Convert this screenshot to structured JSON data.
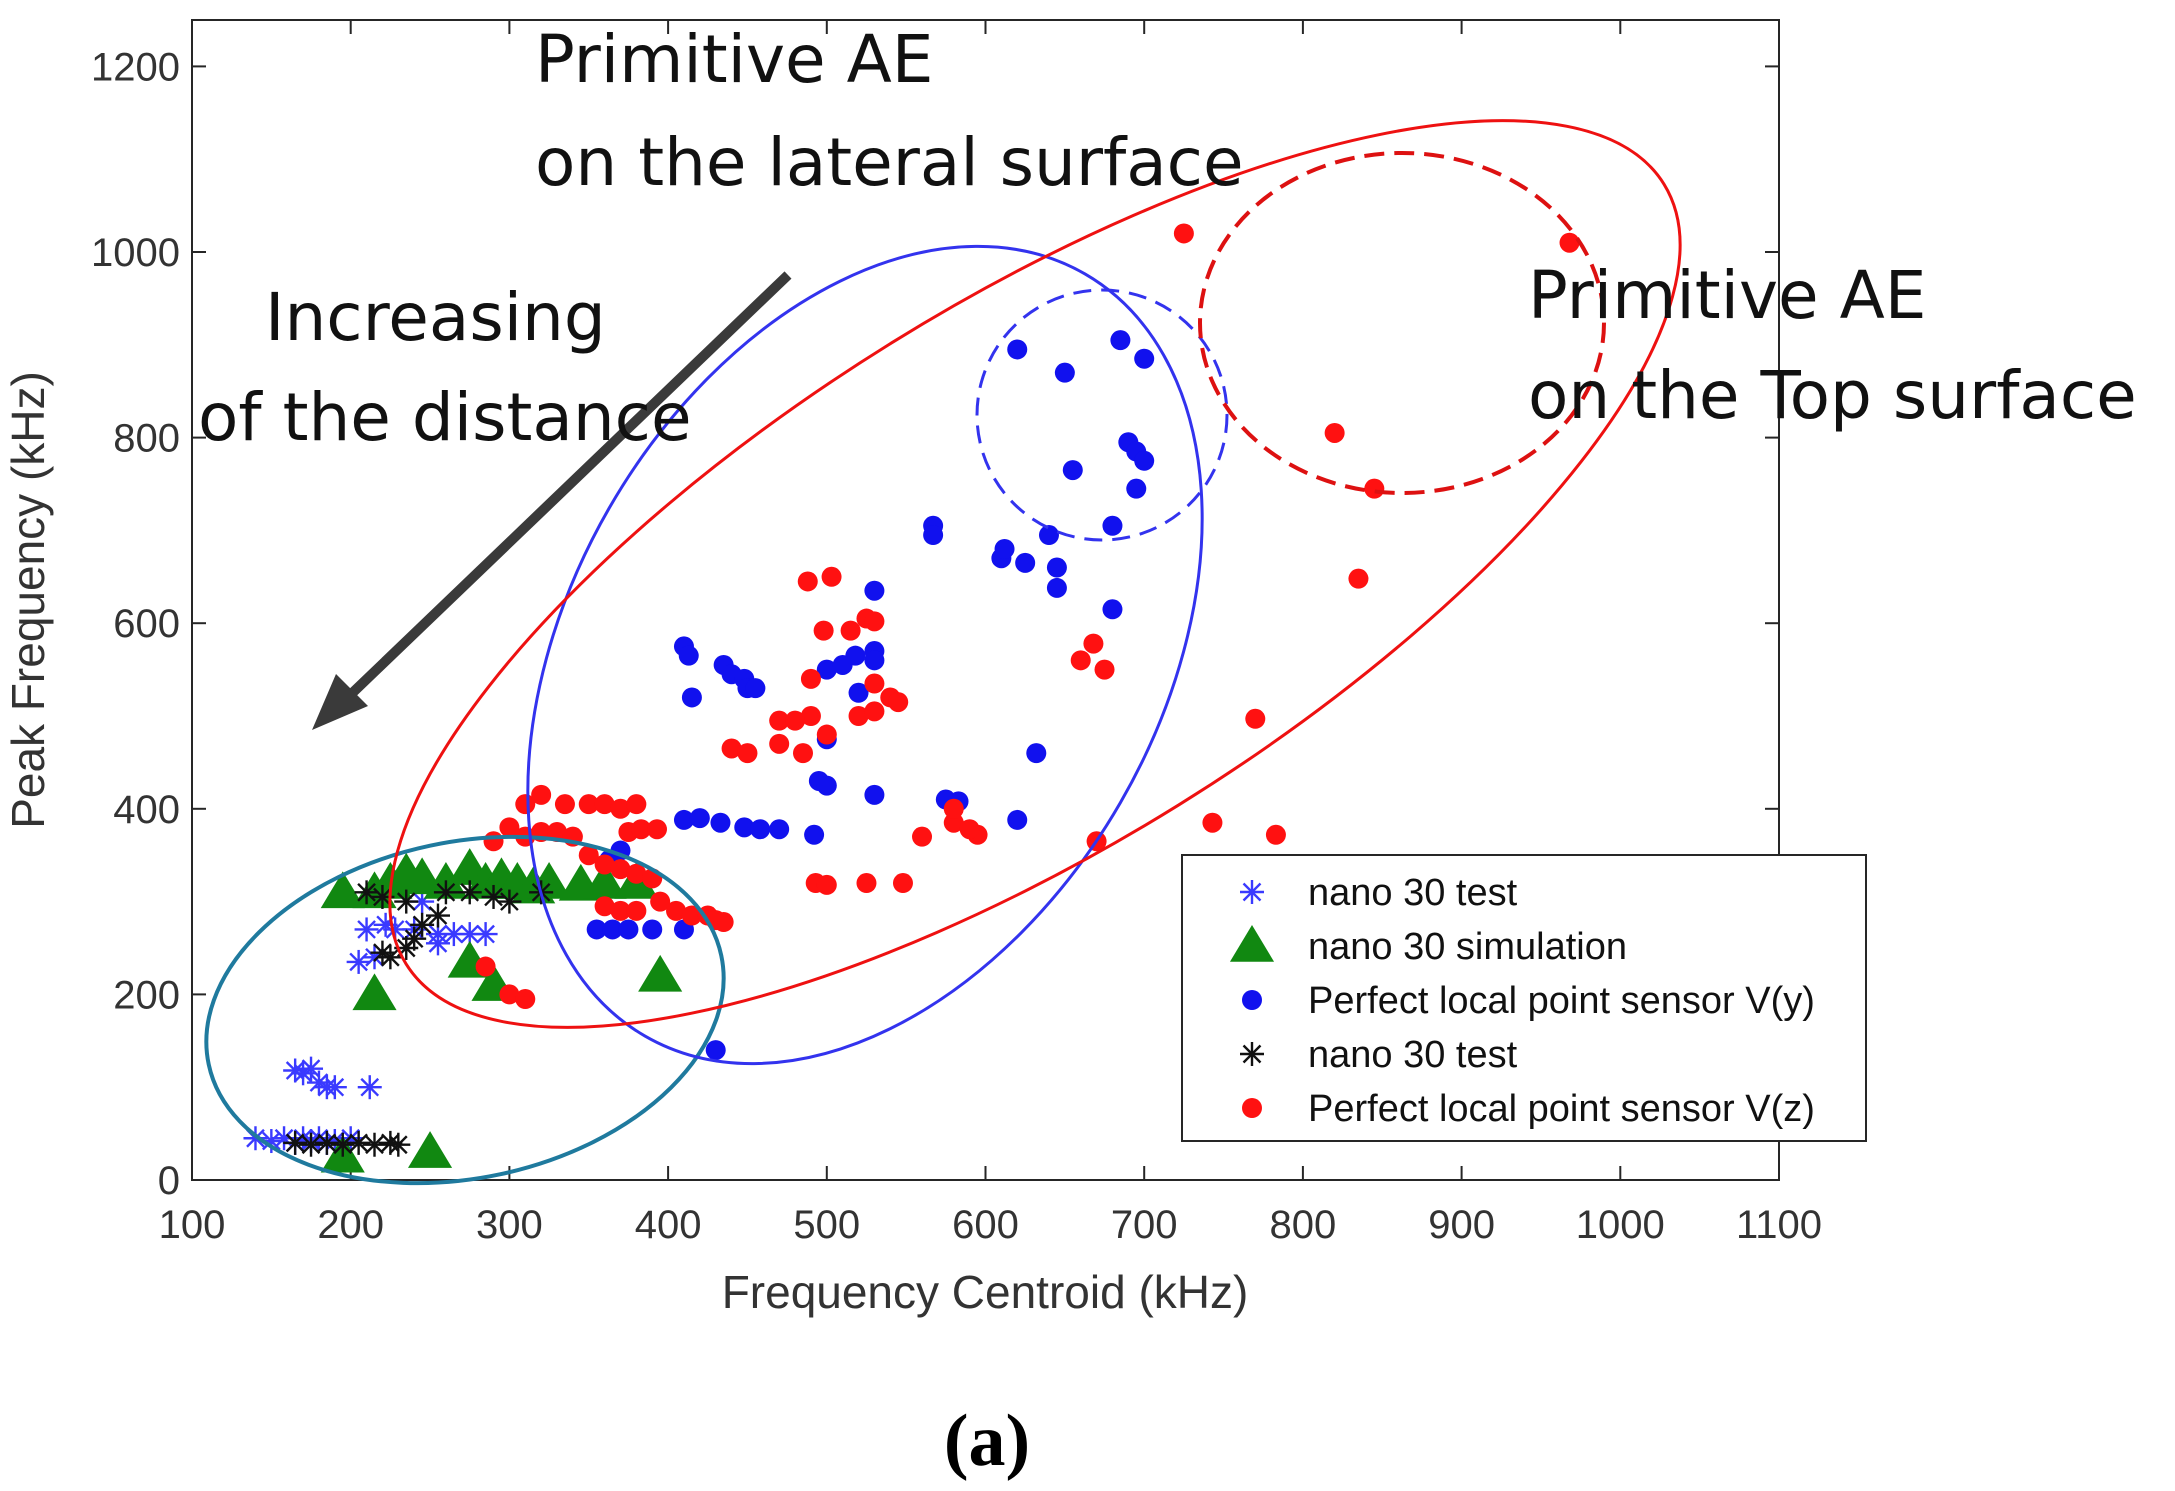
{
  "chart_data": {
    "type": "scatter",
    "xlabel": "Frequency Centroid (kHz)",
    "ylabel": "Peak Frequency (kHz)",
    "xlim": [
      100,
      1100
    ],
    "ylim": [
      0,
      1250
    ],
    "xticks": [
      100,
      200,
      300,
      400,
      500,
      600,
      700,
      800,
      900,
      1000,
      1100
    ],
    "yticks": [
      0,
      200,
      400,
      600,
      800,
      1000,
      1200
    ],
    "grid": false,
    "legend_position": "bottom-right",
    "caption": "(a)",
    "annotations": [
      {
        "name": "lateral",
        "lines": [
          "Primitive AE",
          "on the lateral surface"
        ]
      },
      {
        "name": "top",
        "lines": [
          "Primitive AE",
          "on the Top surface"
        ]
      },
      {
        "name": "distance",
        "lines": [
          "Increasing",
          "of the distance"
        ]
      }
    ],
    "series": [
      {
        "name": "nano 30 test",
        "marker": "asterisk",
        "color": "#3a3aff",
        "points": [
          [
            140,
            45
          ],
          [
            150,
            42
          ],
          [
            158,
            45
          ],
          [
            165,
            40
          ],
          [
            170,
            45
          ],
          [
            175,
            42
          ],
          [
            180,
            45
          ],
          [
            185,
            40
          ],
          [
            190,
            42
          ],
          [
            200,
            45
          ],
          [
            165,
            118
          ],
          [
            170,
            115
          ],
          [
            175,
            120
          ],
          [
            180,
            105
          ],
          [
            185,
            100
          ],
          [
            190,
            100
          ],
          [
            212,
            100
          ],
          [
            205,
            235
          ],
          [
            215,
            240
          ],
          [
            210,
            270
          ],
          [
            222,
            275
          ],
          [
            228,
            270
          ],
          [
            240,
            270
          ],
          [
            255,
            265
          ],
          [
            265,
            265
          ],
          [
            275,
            265
          ],
          [
            285,
            265
          ],
          [
            255,
            255
          ],
          [
            245,
            300
          ]
        ]
      },
      {
        "name": "nano 30 simulation",
        "marker": "triangle",
        "color": "#118811",
        "points": [
          [
            195,
            310
          ],
          [
            215,
            310
          ],
          [
            225,
            320
          ],
          [
            235,
            330
          ],
          [
            245,
            325
          ],
          [
            260,
            320
          ],
          [
            275,
            335
          ],
          [
            285,
            320
          ],
          [
            295,
            325
          ],
          [
            305,
            320
          ],
          [
            315,
            315
          ],
          [
            325,
            320
          ],
          [
            345,
            318
          ],
          [
            360,
            320
          ],
          [
            380,
            320
          ],
          [
            215,
            200
          ],
          [
            275,
            235
          ],
          [
            290,
            210
          ],
          [
            395,
            220
          ],
          [
            250,
            30
          ],
          [
            195,
            25
          ]
        ]
      },
      {
        "name": "Perfect local point sensor V(y)",
        "marker": "circle",
        "color": "#1111ee",
        "points": [
          [
            620,
            895
          ],
          [
            685,
            905
          ],
          [
            700,
            885
          ],
          [
            650,
            870
          ],
          [
            690,
            795
          ],
          [
            695,
            785
          ],
          [
            700,
            775
          ],
          [
            655,
            765
          ],
          [
            695,
            745
          ],
          [
            680,
            705
          ],
          [
            567,
            705
          ],
          [
            567,
            695
          ],
          [
            610,
            670
          ],
          [
            612,
            680
          ],
          [
            625,
            665
          ],
          [
            640,
            695
          ],
          [
            645,
            660
          ],
          [
            645,
            638
          ],
          [
            680,
            615
          ],
          [
            530,
            635
          ],
          [
            410,
            575
          ],
          [
            413,
            565
          ],
          [
            435,
            555
          ],
          [
            440,
            545
          ],
          [
            448,
            540
          ],
          [
            450,
            530
          ],
          [
            455,
            530
          ],
          [
            415,
            520
          ],
          [
            500,
            550
          ],
          [
            510,
            555
          ],
          [
            518,
            565
          ],
          [
            530,
            570
          ],
          [
            530,
            560
          ],
          [
            520,
            525
          ],
          [
            500,
            475
          ],
          [
            495,
            430
          ],
          [
            500,
            425
          ],
          [
            530,
            415
          ],
          [
            492,
            372
          ],
          [
            448,
            380
          ],
          [
            458,
            378
          ],
          [
            470,
            378
          ],
          [
            410,
            388
          ],
          [
            420,
            390
          ],
          [
            433,
            385
          ],
          [
            575,
            410
          ],
          [
            583,
            408
          ],
          [
            620,
            388
          ],
          [
            632,
            460
          ],
          [
            355,
            270
          ],
          [
            365,
            270
          ],
          [
            375,
            270
          ],
          [
            390,
            270
          ],
          [
            410,
            270
          ],
          [
            430,
            140
          ],
          [
            370,
            355
          ],
          [
            363,
            345
          ]
        ]
      },
      {
        "name": "nano 30 test",
        "marker": "asterisk",
        "color": "#111111",
        "points": [
          [
            165,
            40
          ],
          [
            175,
            38
          ],
          [
            185,
            40
          ],
          [
            195,
            38
          ],
          [
            205,
            40
          ],
          [
            215,
            38
          ],
          [
            225,
            40
          ],
          [
            230,
            38
          ],
          [
            210,
            310
          ],
          [
            220,
            305
          ],
          [
            235,
            300
          ],
          [
            260,
            310
          ],
          [
            275,
            310
          ],
          [
            290,
            305
          ],
          [
            300,
            300
          ],
          [
            320,
            310
          ],
          [
            220,
            245
          ],
          [
            235,
            250
          ],
          [
            245,
            275
          ],
          [
            255,
            285
          ],
          [
            240,
            260
          ],
          [
            225,
            240
          ]
        ]
      },
      {
        "name": "Perfect local point sensor V(z)",
        "marker": "circle",
        "color": "#ff1111",
        "points": [
          [
            725,
            1020
          ],
          [
            968,
            1010
          ],
          [
            820,
            805
          ],
          [
            845,
            745
          ],
          [
            835,
            648
          ],
          [
            488,
            645
          ],
          [
            503,
            650
          ],
          [
            498,
            592
          ],
          [
            515,
            592
          ],
          [
            525,
            605
          ],
          [
            530,
            602
          ],
          [
            490,
            540
          ],
          [
            520,
            500
          ],
          [
            530,
            505
          ],
          [
            540,
            520
          ],
          [
            545,
            515
          ],
          [
            530,
            535
          ],
          [
            490,
            500
          ],
          [
            500,
            480
          ],
          [
            485,
            460
          ],
          [
            470,
            470
          ],
          [
            440,
            465
          ],
          [
            450,
            460
          ],
          [
            470,
            495
          ],
          [
            480,
            495
          ],
          [
            660,
            560
          ],
          [
            668,
            578
          ],
          [
            675,
            550
          ],
          [
            770,
            497
          ],
          [
            560,
            370
          ],
          [
            580,
            385
          ],
          [
            580,
            400
          ],
          [
            595,
            372
          ],
          [
            590,
            378
          ],
          [
            670,
            365
          ],
          [
            743,
            385
          ],
          [
            783,
            372
          ],
          [
            493,
            320
          ],
          [
            500,
            318
          ],
          [
            525,
            320
          ],
          [
            548,
            320
          ],
          [
            310,
            405
          ],
          [
            320,
            415
          ],
          [
            335,
            405
          ],
          [
            350,
            405
          ],
          [
            360,
            405
          ],
          [
            370,
            400
          ],
          [
            380,
            405
          ],
          [
            375,
            375
          ],
          [
            383,
            378
          ],
          [
            393,
            378
          ],
          [
            350,
            350
          ],
          [
            360,
            340
          ],
          [
            370,
            335
          ],
          [
            380,
            330
          ],
          [
            390,
            325
          ],
          [
            395,
            300
          ],
          [
            405,
            290
          ],
          [
            415,
            285
          ],
          [
            425,
            285
          ],
          [
            430,
            280
          ],
          [
            435,
            278
          ],
          [
            360,
            295
          ],
          [
            370,
            290
          ],
          [
            380,
            290
          ],
          [
            290,
            365
          ],
          [
            300,
            380
          ],
          [
            310,
            370
          ],
          [
            320,
            375
          ],
          [
            330,
            375
          ],
          [
            340,
            370
          ],
          [
            300,
            200
          ],
          [
            310,
            195
          ],
          [
            285,
            230
          ]
        ]
      }
    ]
  }
}
